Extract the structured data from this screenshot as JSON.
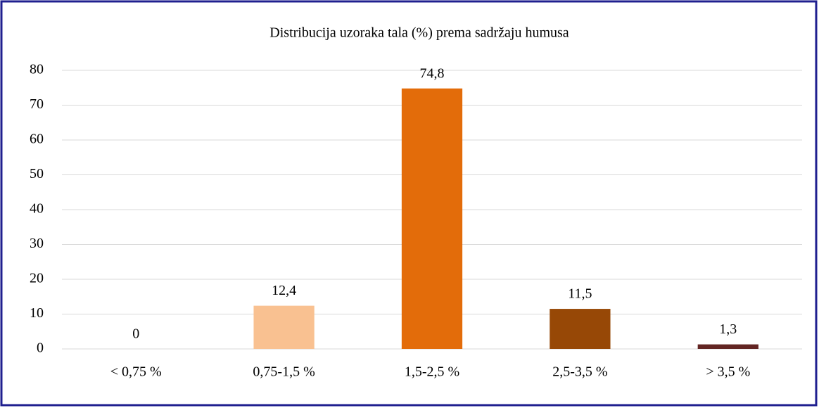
{
  "chart_data": {
    "type": "bar",
    "title": "Distribucija uzoraka tala (%) prema sadržaju humusa",
    "categories": [
      "< 0,75 %",
      "0,75-1,5 %",
      "1,5-2,5 %",
      "2,5-3,5 %",
      "> 3,5 %"
    ],
    "values": [
      0,
      12.4,
      74.8,
      11.5,
      1.3
    ],
    "value_labels": [
      "0",
      "12,4",
      "74,8",
      "11,5",
      "1,3"
    ],
    "colors": [
      "#fbd5b5",
      "#f9c191",
      "#e36c0a",
      "#974806",
      "#632523"
    ],
    "ylim": [
      0,
      80
    ],
    "yticks": [
      0,
      10,
      20,
      30,
      40,
      50,
      60,
      70,
      80
    ],
    "grid": true
  }
}
